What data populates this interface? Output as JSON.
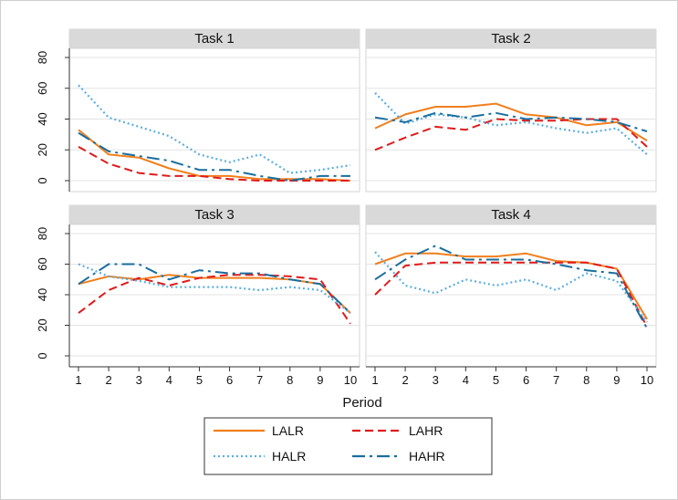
{
  "chart_data": {
    "type": "line",
    "layout": "2x2 small multiples",
    "xlabel": "Period",
    "x": [
      1,
      2,
      3,
      4,
      5,
      6,
      7,
      8,
      9,
      10
    ],
    "ylim": [
      0,
      80
    ],
    "yticks": [
      0,
      20,
      40,
      60,
      80
    ],
    "series_styles": [
      {
        "name": "LALR",
        "color": "#f07f1e",
        "dash": "solid"
      },
      {
        "name": "LAHR",
        "color": "#e01a1a",
        "dash": "dash"
      },
      {
        "name": "HALR",
        "color": "#5aaee0",
        "dash": "dot"
      },
      {
        "name": "HAHR",
        "color": "#1a6e9e",
        "dash": "dash-dot"
      }
    ],
    "panels": [
      {
        "title": "Task 1",
        "series": [
          {
            "name": "LALR",
            "values": [
              33,
              17,
              15,
              8,
              3,
              3,
              1,
              1,
              1,
              0
            ]
          },
          {
            "name": "LAHR",
            "values": [
              22,
              11,
              5,
              3,
              3,
              1,
              0,
              0,
              0,
              0
            ]
          },
          {
            "name": "HALR",
            "values": [
              62,
              41,
              35,
              29,
              17,
              12,
              17,
              5,
              7,
              10
            ]
          },
          {
            "name": "HAHR",
            "values": [
              31,
              19,
              16,
              13,
              7,
              7,
              3,
              0,
              3,
              3
            ]
          }
        ]
      },
      {
        "title": "Task 2",
        "series": [
          {
            "name": "LALR",
            "values": [
              34,
              43,
              48,
              48,
              50,
              43,
              41,
              36,
              38,
              26
            ]
          },
          {
            "name": "LAHR",
            "values": [
              20,
              28,
              35,
              33,
              40,
              39,
              39,
              40,
              40,
              22
            ]
          },
          {
            "name": "HALR",
            "values": [
              57,
              37,
              43,
              41,
              36,
              38,
              34,
              31,
              34,
              17
            ]
          },
          {
            "name": "HAHR",
            "values": [
              41,
              38,
              44,
              41,
              44,
              40,
              41,
              40,
              38,
              32
            ]
          }
        ]
      },
      {
        "title": "Task 3",
        "series": [
          {
            "name": "LALR",
            "values": [
              47,
              52,
              50,
              53,
              51,
              51,
              51,
              50,
              47,
              28
            ]
          },
          {
            "name": "LAHR",
            "values": [
              28,
              43,
              51,
              46,
              51,
              53,
              53,
              52,
              50,
              21
            ]
          },
          {
            "name": "HALR",
            "values": [
              60,
              52,
              49,
              45,
              45,
              45,
              43,
              45,
              43,
              28
            ]
          },
          {
            "name": "HAHR",
            "values": [
              47,
              60,
              60,
              50,
              56,
              54,
              54,
              50,
              47,
              28
            ]
          }
        ]
      },
      {
        "title": "Task 4",
        "series": [
          {
            "name": "LALR",
            "values": [
              60,
              67,
              67,
              65,
              65,
              67,
              62,
              61,
              57,
              24
            ]
          },
          {
            "name": "LAHR",
            "values": [
              40,
              59,
              61,
              61,
              61,
              61,
              61,
              61,
              57,
              19
            ]
          },
          {
            "name": "HALR",
            "values": [
              68,
              46,
              41,
              50,
              46,
              50,
              43,
              54,
              49,
              22
            ]
          },
          {
            "name": "HAHR",
            "values": [
              50,
              63,
              72,
              63,
              63,
              63,
              60,
              56,
              54,
              18
            ]
          }
        ]
      }
    ],
    "legend": [
      {
        "name": "LALR"
      },
      {
        "name": "LAHR"
      },
      {
        "name": "HALR"
      },
      {
        "name": "HAHR"
      }
    ]
  }
}
